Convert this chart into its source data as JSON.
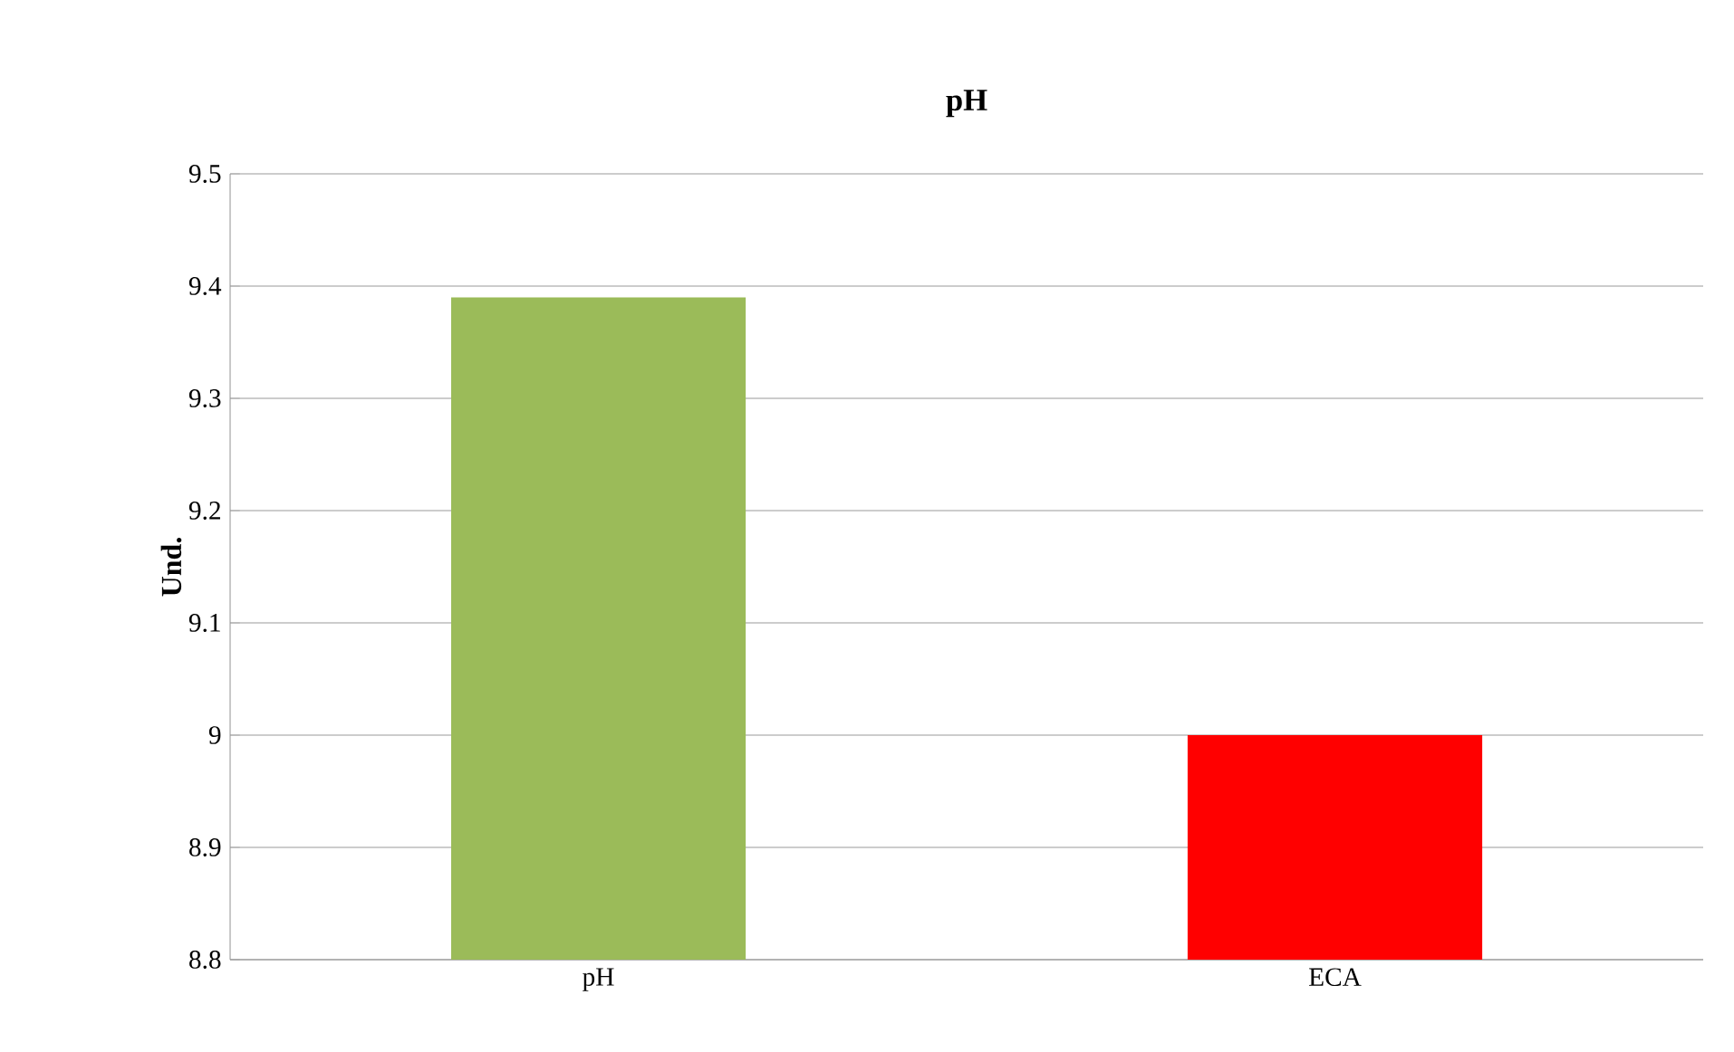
{
  "chart_data": {
    "type": "bar",
    "title": "pH",
    "ylabel": "Und.",
    "categories": [
      "pH",
      "ECA"
    ],
    "values": [
      9.39,
      9.0
    ],
    "colors": [
      "#9bbb59",
      "#ff0000"
    ],
    "ylim": [
      8.8,
      9.5
    ],
    "yticks": [
      8.8,
      8.9,
      9,
      9.1,
      9.2,
      9.3,
      9.4,
      9.5
    ],
    "grid": "y"
  }
}
